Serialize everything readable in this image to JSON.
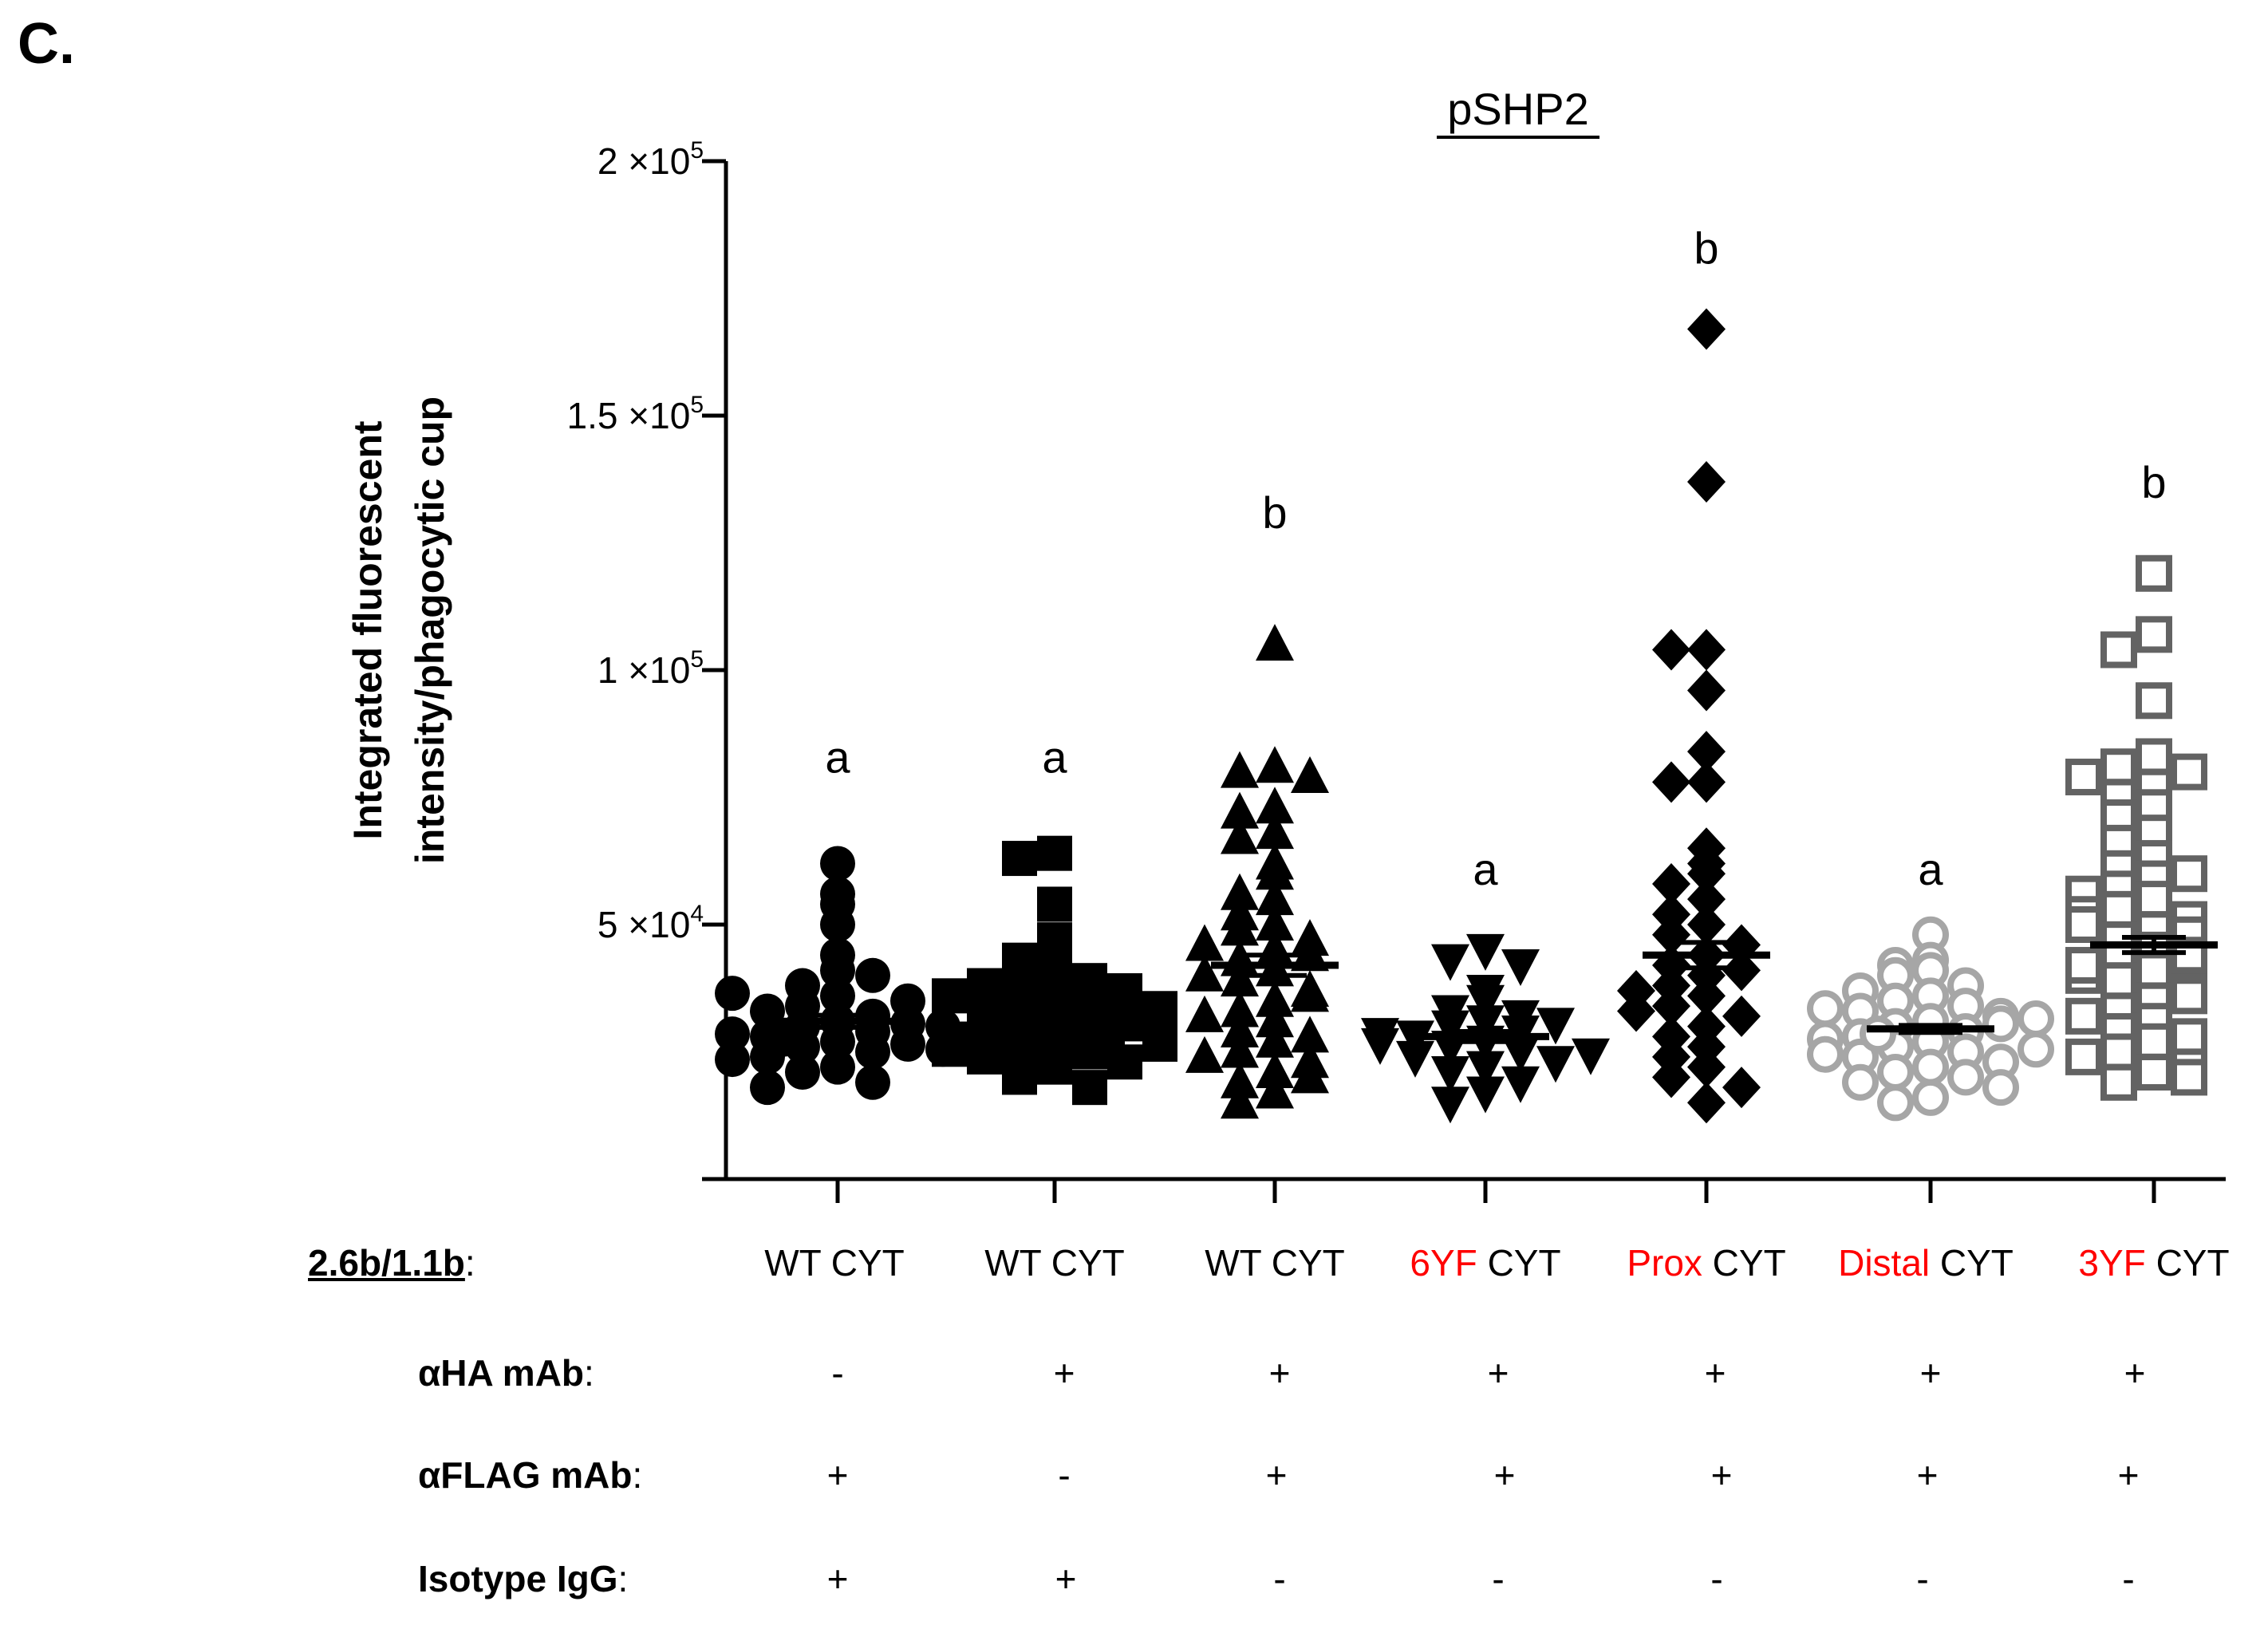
{
  "panel_label": "C.",
  "chart_data": {
    "type": "scatter",
    "title": "pSHP2",
    "xlabel": "",
    "ylabel_lines": [
      "Integrated fluorescent",
      "intensity/phagocytic cup"
    ],
    "ylim": [
      0,
      200000
    ],
    "yticks": [
      {
        "value": 50000,
        "mant": "5",
        "exp": "4"
      },
      {
        "value": 100000,
        "mant": "1",
        "exp": "5"
      },
      {
        "value": 150000,
        "mant": "1.5",
        "exp": "5"
      },
      {
        "value": 200000,
        "mant": "2",
        "exp": "5"
      }
    ],
    "tick_base": "10",
    "groups": [
      {
        "marker": "circle-filled",
        "color": "#000000",
        "mean": 31000,
        "sem": 1200,
        "letter": "a",
        "letter_y": 83000,
        "values": [
          62000,
          56000,
          54000,
          50000,
          44000,
          41000,
          38000,
          40000,
          36000,
          34000,
          32000,
          31000,
          30000,
          29000,
          28000,
          27000,
          26000,
          25000,
          24000,
          22000,
          21000,
          19000,
          18000,
          33000,
          35000,
          30500,
          28500,
          26500,
          23500,
          36500,
          30000,
          27500,
          25500
        ]
      },
      {
        "marker": "square-filled",
        "color": "#000000",
        "mean": 33000,
        "sem": 1300,
        "letter": "a",
        "letter_y": 83000,
        "values": [
          64000,
          63000,
          54000,
          47000,
          45000,
          43000,
          41000,
          40000,
          39000,
          38000,
          37000,
          36000,
          35000,
          34000,
          33000,
          32000,
          31000,
          30000,
          29000,
          28000,
          27000,
          26000,
          25000,
          24000,
          23000,
          22000,
          20000,
          18000,
          36000,
          33500,
          30500,
          27500,
          25500,
          32500,
          29500,
          26500,
          31500,
          28500,
          34500,
          24500
        ]
      },
      {
        "marker": "triangle-up-filled",
        "color": "#000000",
        "mean": 42000,
        "sem": 2000,
        "letter": "b",
        "letter_y": 131000,
        "values": [
          105000,
          81000,
          80000,
          79000,
          73000,
          72000,
          68000,
          67000,
          62000,
          60000,
          56000,
          55000,
          52000,
          50000,
          49000,
          47000,
          45000,
          43000,
          41000,
          39000,
          37000,
          35000,
          33000,
          31000,
          29000,
          27000,
          25000,
          23000,
          21000,
          19000,
          17000,
          15000,
          44000,
          40000,
          36000,
          32000,
          28000,
          24000,
          20000,
          46000
        ]
      },
      {
        "marker": "triangle-down-filled",
        "color": "#000000",
        "mean": 28000,
        "sem": 1000,
        "letter": "a",
        "letter_y": 61000,
        "values": [
          45000,
          43000,
          42000,
          37000,
          35000,
          33000,
          31000,
          30000,
          29000,
          28000,
          27000,
          26000,
          25000,
          24000,
          23000,
          22000,
          21000,
          19000,
          17000,
          15000,
          32000,
          30500,
          28500,
          26500,
          24500
        ]
      },
      {
        "marker": "diamond-filled",
        "color": "#000000",
        "mean": 44000,
        "sem": 2500,
        "letter": "b",
        "letter_y": 183000,
        "values": [
          167000,
          137000,
          104000,
          104000,
          96000,
          84000,
          78000,
          78000,
          65000,
          62000,
          60000,
          58000,
          55000,
          52000,
          50000,
          48000,
          46000,
          44000,
          42000,
          40000,
          38000,
          36000,
          34000,
          32000,
          30000,
          28000,
          26000,
          24000,
          22000,
          20000,
          18000,
          15000,
          41000,
          37000,
          33000
        ]
      },
      {
        "marker": "circle-open",
        "color": "#a6a6a6",
        "mean": 29500,
        "sem": 700,
        "letter": "a",
        "letter_y": 61000,
        "values": [
          48000,
          43000,
          42000,
          41000,
          40000,
          38000,
          37000,
          36000,
          35000,
          34000,
          33000,
          32000,
          31000,
          30000,
          29000,
          28000,
          27000,
          26000,
          25000,
          24000,
          23000,
          22000,
          21000,
          20000,
          19000,
          18000,
          16000,
          15000,
          33500,
          30500,
          27500,
          24500,
          31500,
          28500,
          25500
        ]
      },
      {
        "marker": "square-open",
        "color": "#636363",
        "mean": 46000,
        "sem": 1500,
        "letter": "b",
        "letter_y": 137000,
        "values": [
          119000,
          107000,
          104000,
          94000,
          83000,
          81000,
          80000,
          79000,
          77000,
          75000,
          73000,
          71000,
          68000,
          66000,
          63000,
          61000,
          59000,
          57000,
          55000,
          53000,
          51000,
          49000,
          47000,
          45000,
          43000,
          41000,
          39000,
          37000,
          35000,
          33000,
          31000,
          29000,
          27000,
          25000,
          23000,
          21000,
          19000,
          60000,
          56000,
          52000,
          48000,
          44000,
          40000,
          36000,
          32000,
          28000,
          24000,
          20000,
          50000,
          42000
        ]
      }
    ]
  },
  "rows": {
    "construct": {
      "label": "2.6b/1.1b",
      "colon": ":",
      "values": [
        {
          "mut": "",
          "rest": "WT CYT"
        },
        {
          "mut": "",
          "rest": "WT CYT"
        },
        {
          "mut": "",
          "rest": "WT CYT"
        },
        {
          "mut": "6YF",
          "rest": " CYT"
        },
        {
          "mut": "Prox",
          "rest": " CYT"
        },
        {
          "mut": "Distal",
          "rest": " CYT"
        },
        {
          "mut": "3YF",
          "rest": " CYT"
        }
      ]
    },
    "ha": {
      "label": "αHA mAb",
      "colon": ":",
      "values": [
        "-",
        "+",
        "+",
        "+",
        "+",
        "+",
        "+"
      ]
    },
    "flag": {
      "label": "αFLAG mAb",
      "colon": ":",
      "values": [
        "+",
        "-",
        "+",
        "+",
        "+",
        "+",
        "+"
      ]
    },
    "igg": {
      "label": "Isotype IgG",
      "colon": ":",
      "values": [
        "+",
        "+",
        "-",
        "-",
        "-",
        "-",
        "-"
      ]
    }
  }
}
